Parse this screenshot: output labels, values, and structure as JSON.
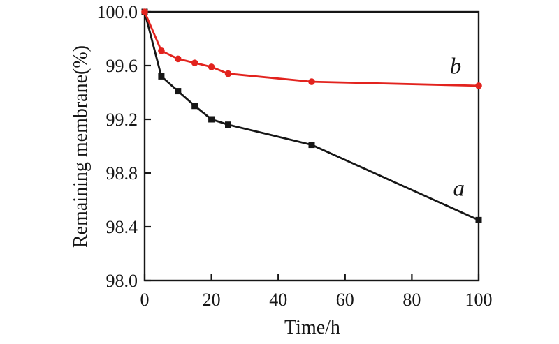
{
  "figure": {
    "background": "#ffffff",
    "axis_color": "#161616"
  },
  "chart_data": {
    "type": "line",
    "title": "",
    "xlabel": "Time/h",
    "ylabel": "Remaining membrane(%)",
    "xlim": [
      0,
      100
    ],
    "ylim": [
      98.0,
      100.0
    ],
    "x_ticks": [
      0,
      20,
      40,
      60,
      80,
      100
    ],
    "x_tick_labels": [
      "0",
      "20",
      "40",
      "60",
      "80",
      "100"
    ],
    "y_ticks": [
      100.0,
      99.6,
      99.2,
      98.8,
      98.4,
      98.0
    ],
    "y_tick_labels": [
      "100.0",
      "99.6",
      "99.2",
      "98.8",
      "98.4",
      "98.0"
    ],
    "grid": false,
    "legend_position": "inline-annotations",
    "x": [
      0,
      5,
      10,
      15,
      20,
      25,
      50,
      100
    ],
    "series": [
      {
        "name": "a",
        "color": "#161616",
        "marker": "square",
        "values": [
          100.0,
          99.52,
          99.41,
          99.3,
          99.2,
          99.16,
          99.01,
          98.45
        ]
      },
      {
        "name": "b",
        "color": "#e2231e",
        "marker": "circle",
        "values": [
          100.0,
          99.71,
          99.65,
          99.62,
          99.59,
          99.54,
          99.48,
          99.45
        ]
      }
    ],
    "annotations": [
      {
        "text": "a",
        "x": 94.1,
        "y": 98.63
      },
      {
        "text": "b",
        "x": 93.1,
        "y": 99.54
      }
    ]
  }
}
